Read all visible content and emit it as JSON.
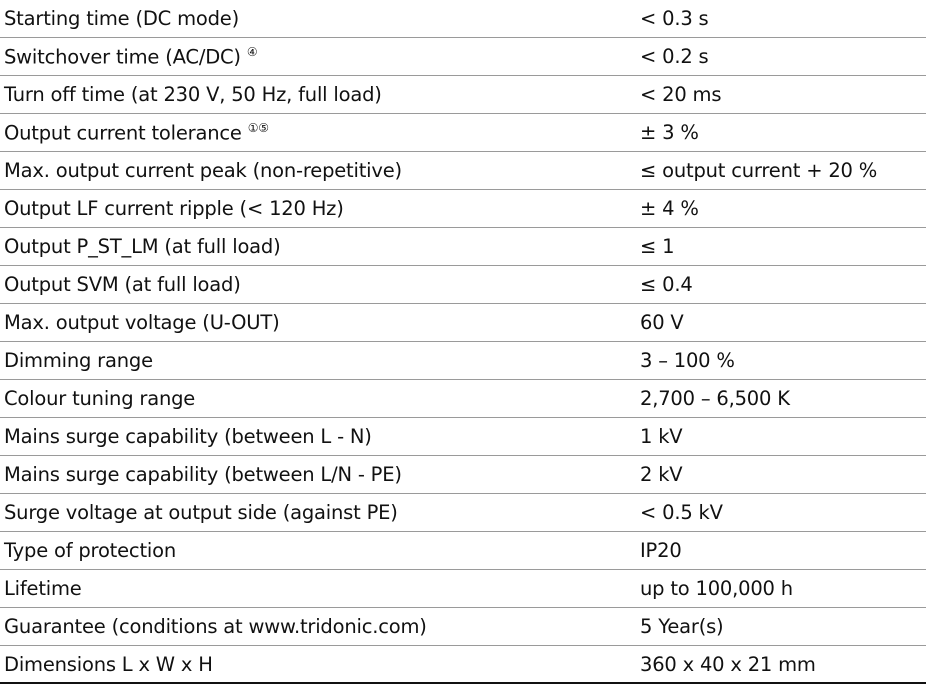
{
  "table": {
    "rows": [
      {
        "label": "Starting time (DC mode)",
        "value": "< 0.3 s"
      },
      {
        "label": "Switchover time (AC/DC)",
        "note": "④",
        "value": "< 0.2 s"
      },
      {
        "label": "Turn off time (at 230 V, 50 Hz, full load)",
        "value": "< 20 ms"
      },
      {
        "label": "Output current tolerance",
        "note": "①⑤",
        "value": "± 3 %"
      },
      {
        "label": "Max. output current peak (non-repetitive)",
        "value": "≤ output current + 20 %"
      },
      {
        "label": "Output LF current ripple (< 120 Hz)",
        "value": "± 4 %"
      },
      {
        "label": "Output P_ST_LM (at full load)",
        "value": "≤ 1"
      },
      {
        "label": "Output SVM (at full load)",
        "value": "≤ 0.4"
      },
      {
        "label": "Max. output voltage (U-OUT)",
        "value": "60 V"
      },
      {
        "label": "Dimming range",
        "value": "3 – 100 %"
      },
      {
        "label": "Colour tuning range",
        "value": "2,700 – 6,500 K"
      },
      {
        "label": "Mains surge capability (between L - N)",
        "value": "1 kV"
      },
      {
        "label": "Mains surge capability (between L/N - PE)",
        "value": "2 kV"
      },
      {
        "label": "Surge voltage at output side (against PE)",
        "value": "< 0.5 kV"
      },
      {
        "label": "Type of protection",
        "value": "IP20"
      },
      {
        "label": "Lifetime",
        "value": "up to 100,000 h"
      },
      {
        "label": "Guarantee (conditions at www.tridonic.com)",
        "value": "5 Year(s)"
      },
      {
        "label": "Dimensions L x W x H",
        "value": "360 x 40 x 21 mm"
      }
    ]
  }
}
